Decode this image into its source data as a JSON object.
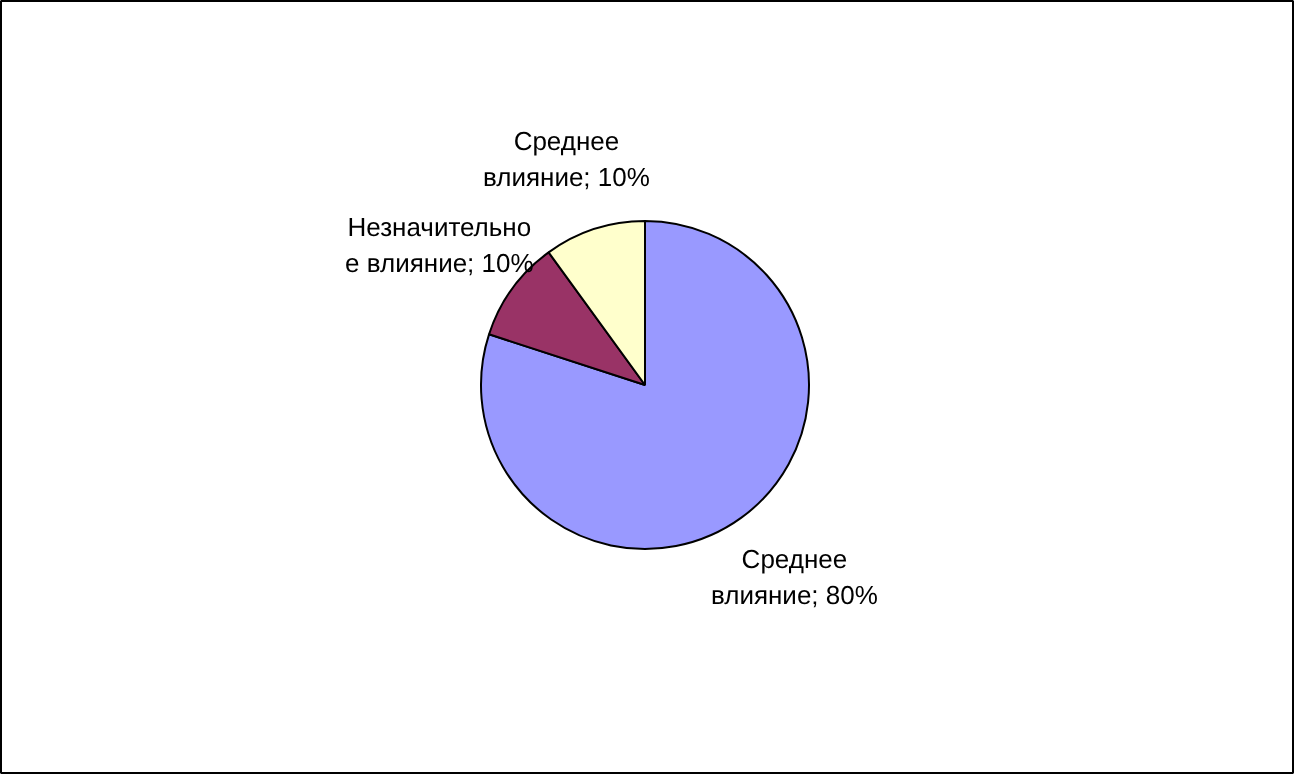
{
  "chart_data": {
    "type": "pie",
    "categories": [
      "Среднее влияние",
      "Незначительное влияние",
      "Среднее влияние"
    ],
    "values": [
      80,
      10,
      10
    ],
    "value_labels": [
      "80%",
      "10%",
      "10%"
    ],
    "colors": [
      "#9999ff",
      "#993366",
      "#ffffcc"
    ]
  }
}
